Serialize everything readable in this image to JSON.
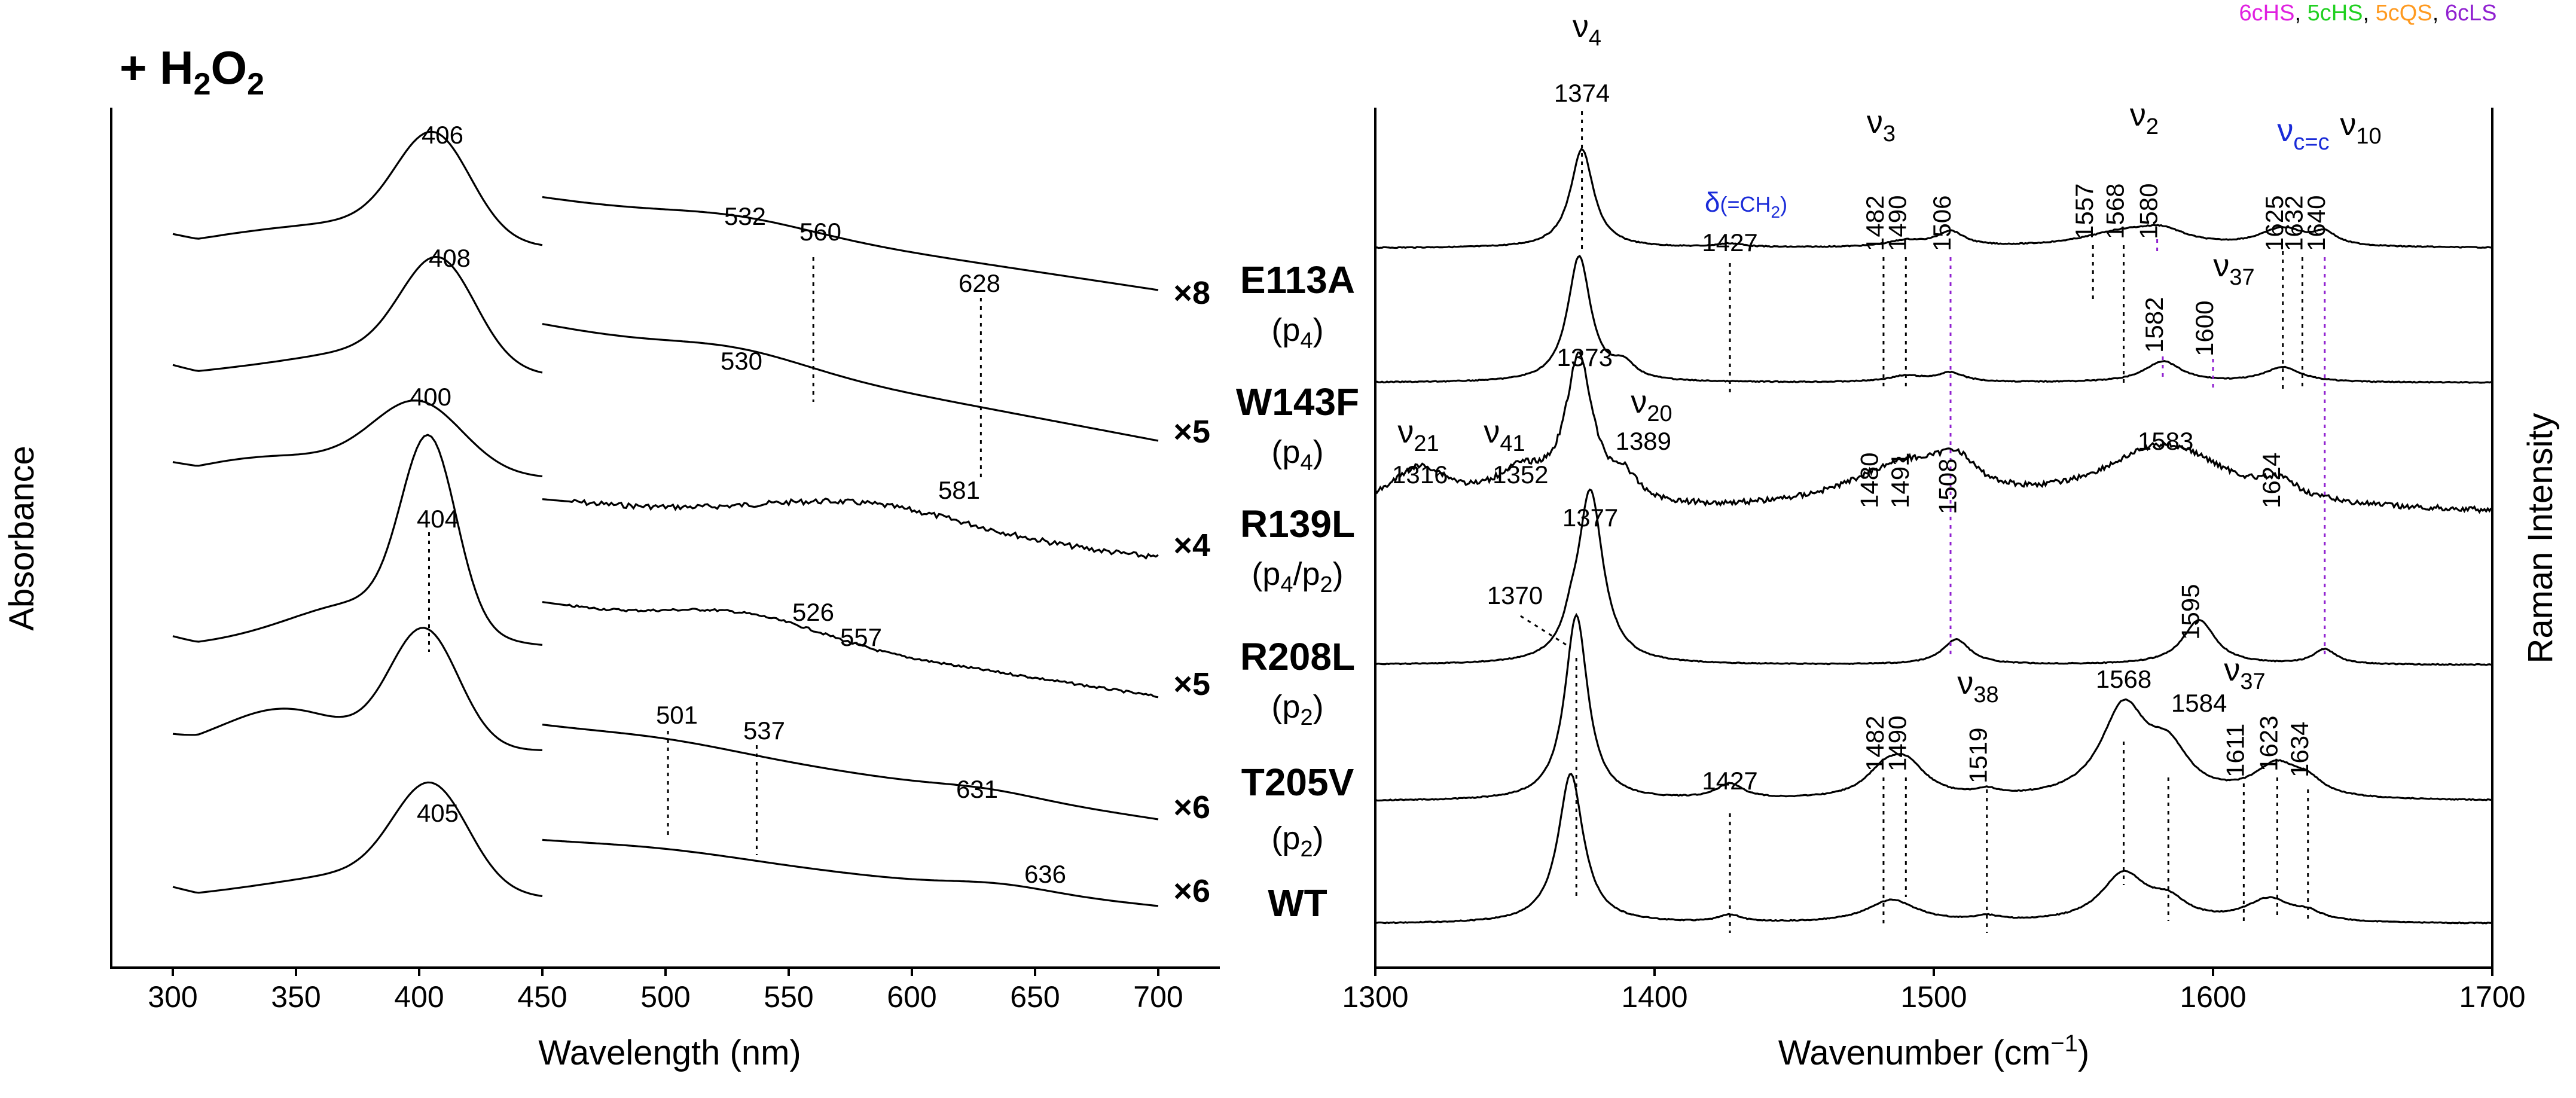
{
  "figure_title": "+ H2O2",
  "legend": [
    {
      "label": "6cHS",
      "color": "#e020e0"
    },
    {
      "label": "5cHS",
      "color": "#20d020"
    },
    {
      "label": "5cQS",
      "color": "#ff9a20"
    },
    {
      "label": "6cLS",
      "color": "#9020d0"
    }
  ],
  "legend_separator": ", ",
  "chart_data": [
    {
      "type": "line",
      "title": "UV-vis absorbance spectra",
      "xlabel": "Wavelength (nm)",
      "ylabel": "Absorbance",
      "xlim": [
        275,
        725
      ],
      "xticks": [
        300,
        350,
        400,
        450,
        500,
        550,
        600,
        650,
        700
      ],
      "soret_region_nm": [
        300,
        450
      ],
      "visible_region_nm": [
        450,
        700
      ],
      "series": [
        {
          "name": "E113A",
          "soret_peak": 406,
          "visible_peaks": [
            532,
            560,
            628
          ],
          "visible_scale": "×8",
          "marked": [
            560,
            628
          ]
        },
        {
          "name": "W143F",
          "soret_peak": 408,
          "visible_peaks": [
            530
          ],
          "visible_scale": "×5",
          "marked": []
        },
        {
          "name": "R139L",
          "soret_peak": 400,
          "visible_peaks": [
            581
          ],
          "visible_scale": "×4",
          "marked": []
        },
        {
          "name": "R208L",
          "soret_peak": 404,
          "visible_peaks": [
            526,
            557
          ],
          "visible_scale": "×5",
          "marked": [
            404
          ]
        },
        {
          "name": "T205V",
          "soret_peak": null,
          "visible_peaks": [
            501,
            537,
            631
          ],
          "visible_scale": "×6",
          "marked": [
            501,
            537
          ]
        },
        {
          "name": "WT",
          "soret_peak": 405,
          "visible_peaks": [
            636
          ],
          "visible_scale": "×6",
          "marked": []
        }
      ]
    },
    {
      "type": "line",
      "title": "Resonance Raman spectra",
      "xlabel": "Wavenumber (cm−1)",
      "xlabel_main": "Wavenumber (cm",
      "xlabel_sup": "−1",
      "xlabel_end": ")",
      "ylabel": "Raman Intensity",
      "xlim": [
        1300,
        1700
      ],
      "xticks": [
        1300,
        1400,
        1500,
        1600,
        1700
      ],
      "series": [
        {
          "name": "E113A",
          "peaks": [
            1374,
            1427,
            1482,
            1490,
            1506,
            1557,
            1568,
            1580,
            1625,
            1632,
            1640
          ]
        },
        {
          "name": "W143F",
          "peaks": [
            1373,
            1582,
            1600
          ]
        },
        {
          "name": "R139L",
          "peaks": [
            1316,
            1352,
            1389,
            1480,
            1491,
            1508,
            1583,
            1624
          ]
        },
        {
          "name": "R208L",
          "peaks": [
            1370,
            1377,
            1595
          ]
        },
        {
          "name": "T205V",
          "peaks": [
            1427,
            1482,
            1490,
            1519,
            1568,
            1584,
            1611,
            1623,
            1634
          ]
        },
        {
          "name": "WT",
          "peaks": []
        }
      ]
    }
  ],
  "mutants": [
    {
      "name": "E113A",
      "sub_open": "(p",
      "sub_index": "4",
      "sub_close": ")"
    },
    {
      "name": "W143F",
      "sub_open": "(p",
      "sub_index": "4",
      "sub_close": ")"
    },
    {
      "name": "R139L",
      "sub_open": "(p",
      "sub_index": "4",
      "sub_mid": "/p",
      "sub_index2": "2",
      "sub_close": ")"
    },
    {
      "name": "R208L",
      "sub_open": "(p",
      "sub_index": "2",
      "sub_close": ")"
    },
    {
      "name": "T205V",
      "sub_open": "(p",
      "sub_index": "2",
      "sub_close": ")"
    },
    {
      "name": "WT"
    }
  ],
  "uv_labels": [
    "406",
    "532",
    "560",
    "628",
    "408",
    "530",
    "400",
    "581",
    "404",
    "526",
    "557",
    "501",
    "537",
    "631",
    "405",
    "636"
  ],
  "scales": [
    "×8",
    "×5",
    "×4",
    "×5",
    "×6",
    "×6"
  ],
  "raman_labels": {
    "black": [
      "1374",
      "1373",
      "1316",
      "1352",
      "1389",
      "1377",
      "1370",
      "1583"
    ],
    "blue": [
      "1427",
      "1625",
      "1427",
      "1623"
    ],
    "magenta": [
      "1482",
      "1557",
      "1480",
      "1482",
      "1584",
      "1611"
    ],
    "green": [
      "1490",
      "1568",
      "1632",
      "1491",
      "1624",
      "1490",
      "1568",
      "1634"
    ],
    "purple": [
      "1506",
      "1580",
      "1640",
      "1582",
      "1600",
      "1508",
      "1595",
      "1519"
    ]
  },
  "band_labels": {
    "nu": "ν",
    "nu4": "4",
    "nu3": "3",
    "nu2": "2",
    "nu10": "10",
    "nu37": "37",
    "nu20": "20",
    "nu21": "21",
    "nu41": "41",
    "nu38": "38",
    "vcc": "c=c",
    "delta": "δ",
    "delta_group": "(=CH",
    "delta_sub": "2",
    "delta_close": ")"
  },
  "title_parts": {
    "plus": "+ H",
    "sub1": "2",
    "o": "O",
    "sub2": "2"
  },
  "colors": {
    "line": "#000000",
    "blue": "#1a2bd8",
    "magenta": "#e020e0",
    "green": "#20d020",
    "purple": "#9020d0",
    "orange": "#ff9a20"
  }
}
